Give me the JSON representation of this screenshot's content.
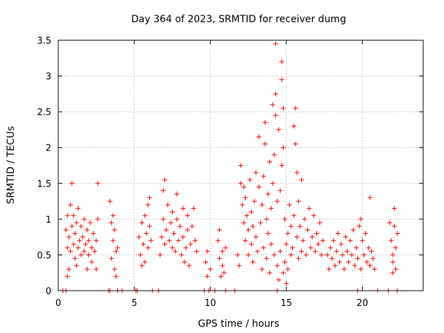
{
  "chart_data": {
    "type": "scatter",
    "title": "Day 364 of 2023, SRMTID for receiver dumg",
    "xlabel": "GPS time / hours",
    "ylabel": "SRMTID / TECUs",
    "xlim": [
      0,
      24
    ],
    "ylim": [
      0,
      3.5
    ],
    "xticks": [
      0,
      5,
      10,
      15,
      20
    ],
    "yticks": [
      0,
      0.5,
      1,
      1.5,
      2,
      2.5,
      3,
      3.5
    ],
    "x_tick_labels": [
      "0",
      "5",
      "10",
      "15",
      "20"
    ],
    "y_tick_labels": [
      "0",
      "0.5",
      "1",
      "1.5",
      "2",
      "2.5",
      "3",
      "3.5"
    ],
    "grid": true,
    "marker": "plus",
    "color": "#ee0000",
    "series": [
      {
        "name": "SRMTID",
        "points": [
          [
            0.3,
            0.0
          ],
          [
            0.5,
            0.0
          ],
          [
            3.3,
            0.0
          ],
          [
            3.4,
            0.0
          ],
          [
            3.9,
            0.0
          ],
          [
            4.2,
            0.0
          ],
          [
            5.1,
            0.0
          ],
          [
            5.2,
            0.0
          ],
          [
            6.2,
            0.0
          ],
          [
            6.6,
            0.0
          ],
          [
            9.6,
            0.0
          ],
          [
            9.9,
            0.0
          ],
          [
            10.3,
            0.0
          ],
          [
            11.0,
            0.0
          ],
          [
            11.6,
            0.0
          ],
          [
            14.4,
            0.0
          ],
          [
            19.7,
            0.0
          ],
          [
            21.0,
            0.0
          ],
          [
            21.7,
            0.0
          ],
          [
            22.3,
            0.0
          ],
          [
            0.5,
            0.85
          ],
          [
            0.6,
            0.6
          ],
          [
            0.6,
            1.05
          ],
          [
            0.7,
            0.3
          ],
          [
            0.7,
            0.75
          ],
          [
            0.8,
            1.2
          ],
          [
            0.8,
            0.55
          ],
          [
            0.9,
            0.9
          ],
          [
            0.9,
            1.5
          ],
          [
            1.0,
            0.65
          ],
          [
            1.0,
            1.05
          ],
          [
            1.1,
            0.45
          ],
          [
            1.1,
            0.8
          ],
          [
            1.2,
            0.95
          ],
          [
            1.3,
            0.6
          ],
          [
            1.3,
            1.15
          ],
          [
            1.4,
            0.7
          ],
          [
            1.5,
            0.5
          ],
          [
            1.5,
            0.9
          ],
          [
            1.6,
            0.75
          ],
          [
            1.7,
            0.55
          ],
          [
            1.7,
            1.0
          ],
          [
            1.8,
            0.65
          ],
          [
            1.9,
            0.85
          ],
          [
            2.0,
            0.5
          ],
          [
            2.0,
            0.7
          ],
          [
            2.1,
            0.95
          ],
          [
            2.2,
            0.4
          ],
          [
            2.2,
            0.6
          ],
          [
            2.3,
            0.8
          ],
          [
            2.4,
            0.55
          ],
          [
            2.5,
            0.3
          ],
          [
            2.5,
            0.7
          ],
          [
            2.6,
            1.0
          ],
          [
            2.6,
            1.5
          ],
          [
            0.6,
            0.2
          ],
          [
            1.2,
            0.35
          ],
          [
            1.9,
            0.3
          ],
          [
            3.4,
            1.25
          ],
          [
            3.5,
            0.95
          ],
          [
            3.5,
            0.45
          ],
          [
            3.6,
            0.7
          ],
          [
            3.6,
            1.05
          ],
          [
            3.7,
            0.3
          ],
          [
            3.7,
            0.85
          ],
          [
            3.8,
            0.55
          ],
          [
            3.8,
            0.2
          ],
          [
            3.9,
            0.6
          ],
          [
            5.3,
            0.75
          ],
          [
            5.4,
            0.5
          ],
          [
            5.5,
            0.95
          ],
          [
            5.5,
            0.35
          ],
          [
            5.6,
            0.65
          ],
          [
            5.7,
            1.05
          ],
          [
            5.7,
            0.4
          ],
          [
            5.8,
            0.8
          ],
          [
            5.9,
            1.2
          ],
          [
            5.9,
            0.6
          ],
          [
            6.0,
            0.9
          ],
          [
            6.0,
            1.3
          ],
          [
            6.1,
            0.7
          ],
          [
            6.7,
            0.5
          ],
          [
            6.8,
            0.75
          ],
          [
            6.9,
            1.0
          ],
          [
            6.9,
            1.4
          ],
          [
            7.0,
            0.65
          ],
          [
            7.0,
            1.55
          ],
          [
            7.1,
            0.85
          ],
          [
            7.2,
            1.2
          ],
          [
            7.3,
            0.7
          ],
          [
            7.4,
            0.95
          ],
          [
            7.5,
            0.6
          ],
          [
            7.5,
            1.1
          ],
          [
            7.6,
            0.8
          ],
          [
            7.7,
            0.55
          ],
          [
            7.8,
            1.0
          ],
          [
            7.8,
            1.35
          ],
          [
            7.9,
            0.7
          ],
          [
            8.0,
            0.9
          ],
          [
            8.1,
            0.5
          ],
          [
            8.2,
            0.75
          ],
          [
            8.2,
            1.15
          ],
          [
            8.3,
            0.4
          ],
          [
            8.4,
            0.6
          ],
          [
            8.5,
            0.85
          ],
          [
            8.5,
            1.05
          ],
          [
            8.6,
            0.35
          ],
          [
            8.7,
            0.65
          ],
          [
            8.8,
            0.9
          ],
          [
            8.9,
            1.15
          ],
          [
            9.0,
            0.7
          ],
          [
            9.1,
            0.55
          ],
          [
            9.7,
            0.4
          ],
          [
            9.8,
            0.55
          ],
          [
            9.8,
            0.2
          ],
          [
            10.0,
            0.3
          ],
          [
            10.5,
            0.7
          ],
          [
            10.6,
            0.45
          ],
          [
            10.7,
            0.2
          ],
          [
            10.8,
            0.55
          ],
          [
            10.8,
            0.35
          ],
          [
            11.0,
            0.6
          ],
          [
            10.6,
            0.85
          ],
          [
            10.9,
            0.25
          ],
          [
            11.8,
            0.5
          ],
          [
            11.9,
            0.35
          ],
          [
            12.0,
            1.5
          ],
          [
            12.0,
            1.75
          ],
          [
            12.1,
            1.2
          ],
          [
            12.2,
            0.95
          ],
          [
            12.2,
            1.45
          ],
          [
            12.3,
            0.7
          ],
          [
            12.3,
            1.3
          ],
          [
            12.4,
            1.05
          ],
          [
            12.5,
            0.5
          ],
          [
            12.5,
            0.85
          ],
          [
            12.6,
            1.55
          ],
          [
            12.7,
            0.65
          ],
          [
            12.7,
            1.1
          ],
          [
            12.8,
            0.4
          ],
          [
            12.8,
            0.9
          ],
          [
            12.9,
            1.25
          ],
          [
            13.0,
            0.75
          ],
          [
            13.0,
            1.65
          ],
          [
            13.1,
            0.55
          ],
          [
            13.2,
            1.45
          ],
          [
            13.2,
            2.15
          ],
          [
            13.3,
            0.95
          ],
          [
            13.4,
            1.2
          ],
          [
            13.4,
            0.3
          ],
          [
            13.5,
            1.6
          ],
          [
            13.5,
            0.6
          ],
          [
            13.6,
            2.05
          ],
          [
            13.6,
            2.35
          ],
          [
            13.7,
            1.0
          ],
          [
            13.7,
            0.45
          ],
          [
            13.8,
            1.35
          ],
          [
            13.8,
            0.8
          ],
          [
            13.9,
            1.8
          ],
          [
            13.9,
            0.25
          ],
          [
            14.0,
            0.65
          ],
          [
            14.0,
            1.15
          ],
          [
            14.1,
            2.6
          ],
          [
            14.1,
            1.5
          ],
          [
            14.2,
            0.5
          ],
          [
            14.2,
            1.9
          ],
          [
            14.3,
            2.75
          ],
          [
            14.3,
            2.45
          ],
          [
            14.3,
            3.45
          ],
          [
            14.4,
            1.25
          ],
          [
            14.4,
            0.35
          ],
          [
            14.5,
            2.25
          ],
          [
            14.5,
            0.15
          ],
          [
            14.6,
            1.4
          ],
          [
            14.6,
            0.55
          ],
          [
            14.7,
            2.95
          ],
          [
            14.7,
            1.75
          ],
          [
            14.7,
            3.2
          ],
          [
            14.8,
            0.25
          ],
          [
            14.8,
            2.0
          ],
          [
            14.8,
            2.55
          ],
          [
            14.9,
            1.0
          ],
          [
            14.9,
            0.4
          ],
          [
            15.0,
            0.65
          ],
          [
            15.0,
            0.1
          ],
          [
            15.1,
            0.8
          ],
          [
            15.1,
            0.3
          ],
          [
            15.2,
            1.2
          ],
          [
            15.3,
            0.5
          ],
          [
            15.3,
            0.9
          ],
          [
            15.4,
            0.6
          ],
          [
            15.5,
            2.3
          ],
          [
            15.5,
            1.05
          ],
          [
            15.6,
            2.55
          ],
          [
            15.6,
            2.05
          ],
          [
            15.7,
            0.75
          ],
          [
            15.7,
            1.65
          ],
          [
            15.8,
            0.45
          ],
          [
            15.8,
            1.25
          ],
          [
            15.9,
            0.9
          ],
          [
            16.0,
            1.55
          ],
          [
            16.0,
            0.55
          ],
          [
            16.1,
            0.7
          ],
          [
            16.2,
            1.0
          ],
          [
            16.3,
            0.5
          ],
          [
            16.4,
            0.85
          ],
          [
            16.5,
            1.15
          ],
          [
            16.6,
            0.6
          ],
          [
            16.7,
            0.75
          ],
          [
            16.8,
            1.05
          ],
          [
            16.9,
            0.55
          ],
          [
            17.0,
            0.8
          ],
          [
            17.1,
            0.65
          ],
          [
            17.2,
            0.95
          ],
          [
            17.3,
            0.5
          ],
          [
            17.4,
            0.7
          ],
          [
            17.7,
            0.5
          ],
          [
            17.8,
            0.3
          ],
          [
            17.9,
            0.6
          ],
          [
            18.0,
            0.45
          ],
          [
            18.1,
            0.7
          ],
          [
            18.2,
            0.35
          ],
          [
            18.3,
            0.55
          ],
          [
            18.4,
            0.8
          ],
          [
            18.5,
            0.4
          ],
          [
            18.6,
            0.65
          ],
          [
            18.7,
            0.5
          ],
          [
            18.8,
            0.3
          ],
          [
            18.9,
            0.75
          ],
          [
            19.0,
            0.55
          ],
          [
            19.1,
            0.4
          ],
          [
            19.2,
            0.7
          ],
          [
            19.3,
            0.5
          ],
          [
            19.4,
            0.85
          ],
          [
            19.5,
            0.35
          ],
          [
            19.6,
            0.6
          ],
          [
            19.7,
            0.45
          ],
          [
            19.8,
            0.9
          ],
          [
            19.9,
            1.0
          ],
          [
            19.9,
            0.3
          ],
          [
            20.0,
            0.7
          ],
          [
            20.1,
            0.5
          ],
          [
            20.2,
            0.8
          ],
          [
            20.3,
            0.4
          ],
          [
            20.4,
            0.6
          ],
          [
            20.5,
            1.3
          ],
          [
            20.5,
            0.35
          ],
          [
            20.6,
            0.55
          ],
          [
            20.7,
            0.45
          ],
          [
            20.8,
            0.3
          ],
          [
            21.8,
            0.95
          ],
          [
            21.9,
            0.7
          ],
          [
            22.0,
            0.4
          ],
          [
            22.0,
            0.5
          ],
          [
            22.1,
            0.9
          ],
          [
            22.1,
            1.15
          ],
          [
            22.2,
            0.6
          ],
          [
            22.2,
            0.3
          ],
          [
            22.3,
            0.8
          ],
          [
            22.0,
            0.25
          ]
        ]
      }
    ]
  }
}
